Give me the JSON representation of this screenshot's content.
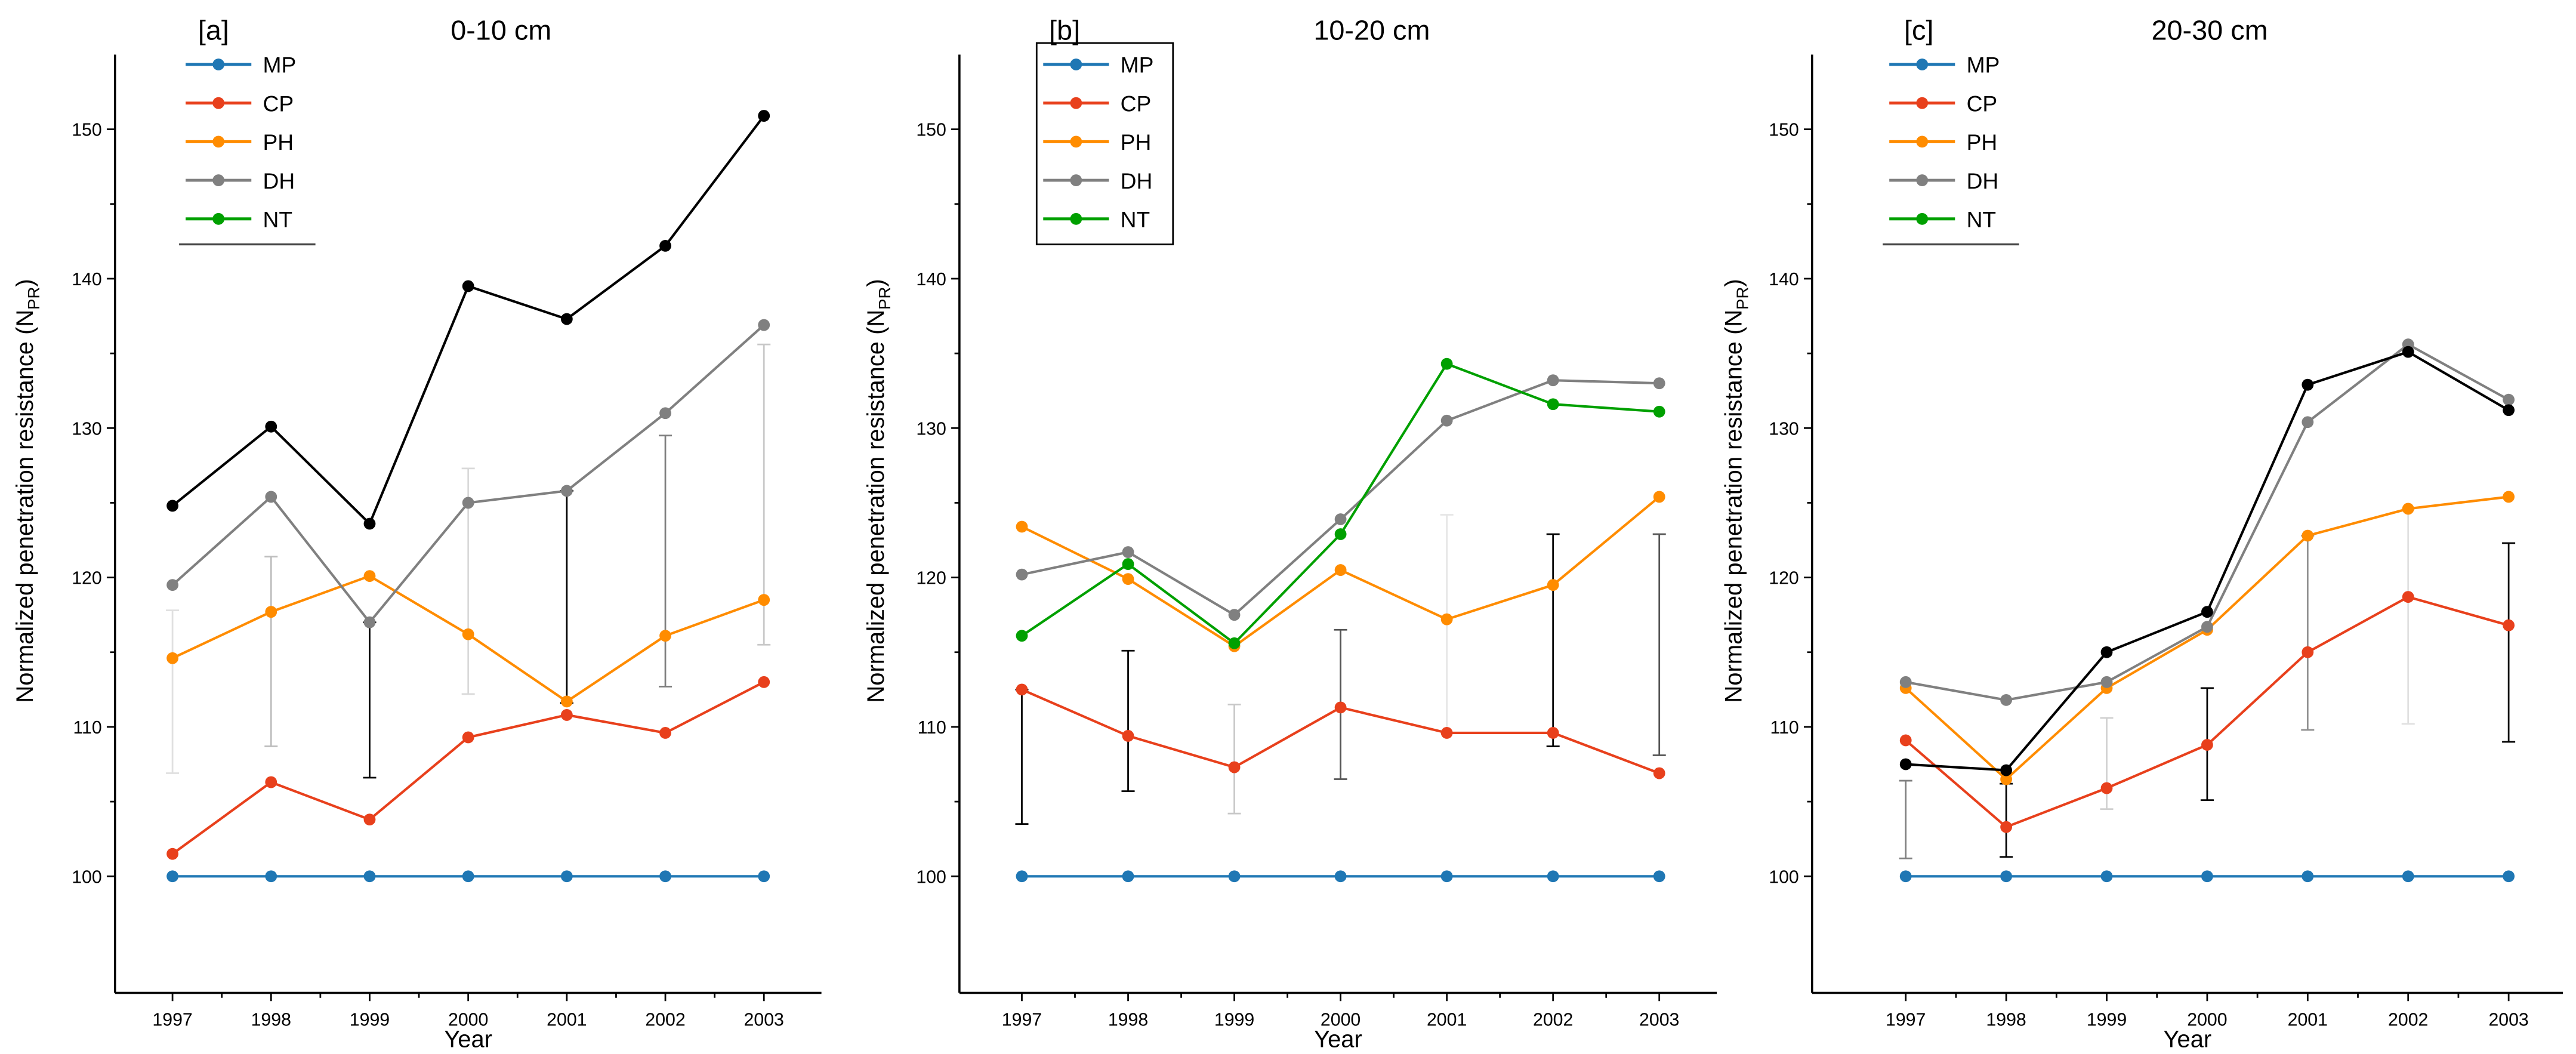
{
  "legend": {
    "entries": [
      {
        "label": "MP",
        "color": "#1f77b4"
      },
      {
        "label": "CP",
        "color": "#e8401c"
      },
      {
        "label": "PH",
        "color": "#ff8c00"
      },
      {
        "label": "DH",
        "color": "#808080"
      },
      {
        "label": "NT",
        "color": "#00a000"
      }
    ]
  },
  "chart_data": [
    {
      "type": "line",
      "panel_label": "[a]",
      "title": "0-10 cm",
      "xlabel": "Year",
      "ylabel": "Normalized penetration resistance (N",
      "ylabel_sub": "PR",
      "ylabel_close": ")",
      "x": [
        "1997",
        "1998",
        "1999",
        "2000",
        "2001",
        "2002",
        "2003"
      ],
      "ylim": [
        92.2,
        155
      ],
      "yticks": [
        "100",
        "110",
        "120",
        "130",
        "140",
        "150"
      ],
      "legend_boxed": false,
      "series": [
        {
          "name": "MP",
          "color": "#1f77b4",
          "values": [
            100,
            100,
            100,
            100,
            100,
            100,
            100
          ]
        },
        {
          "name": "CP",
          "color": "#e8401c",
          "values": [
            101.5,
            106.3,
            103.8,
            109.3,
            110.8,
            109.6,
            113.0
          ]
        },
        {
          "name": "PH",
          "color": "#ff8c00",
          "values": [
            114.6,
            117.7,
            120.1,
            116.2,
            111.7,
            116.1,
            118.5
          ]
        },
        {
          "name": "DH",
          "color": "#808080",
          "values": [
            119.5,
            125.4,
            117.0,
            125.0,
            125.8,
            131.0,
            136.9
          ]
        },
        {
          "name": "NT",
          "color": "#000000",
          "values": [
            124.8,
            130.1,
            123.6,
            139.5,
            137.3,
            142.2,
            150.9
          ]
        }
      ],
      "error_bars": [
        {
          "low": 106.9,
          "high": 117.8,
          "color": "#e0e0e0"
        },
        {
          "low": 108.7,
          "high": 121.4,
          "color": "#bdbdbd"
        },
        {
          "low": 106.6,
          "high": 117.0,
          "color": "#000000"
        },
        {
          "low": 112.2,
          "high": 127.3,
          "color": "#d9d9d9"
        },
        {
          "low": 111.6,
          "high": 125.8,
          "color": "#000000"
        },
        {
          "low": 112.7,
          "high": 129.5,
          "color": "#808080"
        },
        {
          "low": 115.5,
          "high": 135.6,
          "color": "#c8c8c8"
        }
      ]
    },
    {
      "type": "line",
      "panel_label": "[b]",
      "title": "10-20 cm",
      "xlabel": "Year",
      "ylabel": "Normalized penetration resistance (N",
      "ylabel_sub": "PR",
      "ylabel_close": ")",
      "x": [
        "1997",
        "1998",
        "1999",
        "2000",
        "2001",
        "2002",
        "2003"
      ],
      "ylim": [
        92.2,
        155
      ],
      "yticks": [
        "100",
        "110",
        "120",
        "130",
        "140",
        "150"
      ],
      "legend_boxed": true,
      "series": [
        {
          "name": "MP",
          "color": "#1f77b4",
          "values": [
            100,
            100,
            100,
            100,
            100,
            100,
            100
          ]
        },
        {
          "name": "CP",
          "color": "#e8401c",
          "values": [
            112.5,
            109.4,
            107.3,
            111.3,
            109.6,
            109.6,
            106.9
          ]
        },
        {
          "name": "PH",
          "color": "#ff8c00",
          "values": [
            123.4,
            119.9,
            115.4,
            120.5,
            117.2,
            119.5,
            125.4
          ]
        },
        {
          "name": "DH",
          "color": "#808080",
          "values": [
            120.2,
            121.7,
            117.5,
            123.9,
            130.5,
            133.2,
            133.0
          ]
        },
        {
          "name": "NT",
          "color": "#00a000",
          "values": [
            116.1,
            120.9,
            115.6,
            122.9,
            134.3,
            131.6,
            131.1
          ]
        }
      ],
      "error_bars": [
        {
          "low": 103.5,
          "high": 112.5,
          "color": "#000000"
        },
        {
          "low": 105.7,
          "high": 115.1,
          "color": "#000000"
        },
        {
          "low": 104.2,
          "high": 111.5,
          "color": "#c8c8c8"
        },
        {
          "low": 106.5,
          "high": 116.5,
          "color": "#555555"
        },
        {
          "low": 109.6,
          "high": 124.2,
          "color": "#e6e6e6"
        },
        {
          "low": 108.7,
          "high": 122.9,
          "color": "#000000"
        },
        {
          "low": 108.1,
          "high": 122.9,
          "color": "#555555"
        }
      ]
    },
    {
      "type": "line",
      "panel_label": "[c]",
      "title": "20-30 cm",
      "xlabel": "Year",
      "ylabel": "Normalized penetration resistance (N",
      "ylabel_sub": "PR",
      "ylabel_close": ")",
      "x": [
        "1997",
        "1998",
        "1999",
        "2000",
        "2001",
        "2002",
        "2003"
      ],
      "ylim": [
        92.2,
        155
      ],
      "yticks": [
        "100",
        "110",
        "120",
        "130",
        "140",
        "150"
      ],
      "legend_boxed": false,
      "series": [
        {
          "name": "MP",
          "color": "#1f77b4",
          "values": [
            100,
            100,
            100,
            100,
            100,
            100,
            100
          ]
        },
        {
          "name": "CP",
          "color": "#e8401c",
          "values": [
            109.1,
            103.3,
            105.9,
            108.8,
            115.0,
            118.7,
            116.8
          ]
        },
        {
          "name": "PH",
          "color": "#ff8c00",
          "values": [
            112.6,
            106.5,
            112.6,
            116.5,
            122.8,
            124.6,
            125.4
          ]
        },
        {
          "name": "DH",
          "color": "#808080",
          "values": [
            113.0,
            111.8,
            113.0,
            116.7,
            130.4,
            135.6,
            131.9
          ]
        },
        {
          "name": "NT",
          "color": "#000000",
          "values": [
            107.5,
            107.1,
            115.0,
            117.7,
            132.9,
            135.1,
            131.2
          ]
        }
      ],
      "error_bars": [
        {
          "low": 101.2,
          "high": 106.4,
          "color": "#808080"
        },
        {
          "low": 101.3,
          "high": 106.2,
          "color": "#000000"
        },
        {
          "low": 104.5,
          "high": 110.6,
          "color": "#d0d0d0"
        },
        {
          "low": 105.1,
          "high": 112.6,
          "color": "#000000"
        },
        {
          "low": 109.8,
          "high": 122.8,
          "color": "#909090"
        },
        {
          "low": 110.2,
          "high": 124.6,
          "color": "#e0e0e0"
        },
        {
          "low": 109.0,
          "high": 122.3,
          "color": "#000000"
        }
      ]
    }
  ]
}
